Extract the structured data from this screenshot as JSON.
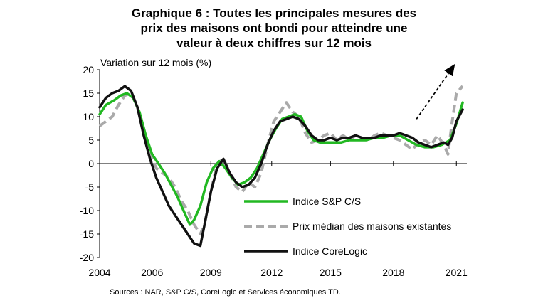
{
  "title_lines": [
    "Graphique 6 : Toutes les principales mesures des",
    "prix des maisons ont bondi pour atteindre une",
    "valeur à deux chiffres sur 12 mois"
  ],
  "source": "Sources : NAR, S&P C/S, CoreLogic et Services économiques TD.",
  "chart_data": {
    "type": "line",
    "title": "Graphique 6 : Toutes les principales mesures des prix des maisons ont bondi pour atteindre une valeur à deux chiffres sur 12 mois",
    "ylabel": "Variation sur 12 mois (%)",
    "xlabel": "",
    "xlim": [
      2004,
      2021.5
    ],
    "ylim": [
      -20,
      20
    ],
    "x_ticks": [
      "2004",
      "2006",
      "2009",
      "2012",
      "2015",
      "2018",
      "2021"
    ],
    "x_tick_values": [
      2004,
      2006.5,
      2009.3,
      2012.2,
      2015,
      2018,
      2021
    ],
    "y_ticks": [
      20,
      15,
      10,
      5,
      0,
      -5,
      -10,
      -15,
      -20
    ],
    "grid": false,
    "legend_position": "center-right",
    "series": [
      {
        "name": "Indice S&P C/S",
        "color": "#22b822",
        "style": "solid",
        "x": [
          2004,
          2004.3,
          2004.7,
          2005.0,
          2005.3,
          2005.6,
          2005.9,
          2006.2,
          2006.5,
          2006.8,
          2007.1,
          2007.4,
          2007.7,
          2008.0,
          2008.3,
          2008.5,
          2008.8,
          2009.1,
          2009.4,
          2009.7,
          2010.0,
          2010.3,
          2010.6,
          2010.9,
          2011.2,
          2011.5,
          2011.8,
          2012.1,
          2012.4,
          2012.7,
          2013.0,
          2013.3,
          2013.6,
          2013.9,
          2014.2,
          2014.5,
          2014.8,
          2015.1,
          2015.5,
          2015.9,
          2016.3,
          2016.7,
          2017.1,
          2017.5,
          2017.9,
          2018.3,
          2018.7,
          2019.1,
          2019.5,
          2019.9,
          2020.3,
          2020.7,
          2021.0,
          2021.3
        ],
        "values": [
          10.5,
          12.5,
          13.5,
          14.5,
          15.0,
          14.0,
          11.0,
          6.0,
          2.0,
          0.0,
          -2.0,
          -4.5,
          -7.0,
          -10.0,
          -13.0,
          -12.0,
          -9.0,
          -4.0,
          -1.0,
          0.5,
          -1.0,
          -3.0,
          -4.5,
          -4.0,
          -3.0,
          -1.0,
          2.0,
          5.0,
          7.5,
          9.5,
          10.0,
          10.5,
          10.0,
          7.0,
          5.0,
          4.5,
          4.5,
          4.5,
          4.5,
          5.0,
          5.0,
          5.0,
          5.5,
          5.5,
          6.0,
          6.0,
          5.0,
          4.0,
          3.5,
          3.5,
          4.0,
          5.0,
          8.5,
          13.0
        ]
      },
      {
        "name": "Prix médian des maisons existantes",
        "color": "#aaaaaa",
        "style": "dashed",
        "x": [
          2004,
          2004.3,
          2004.6,
          2004.9,
          2005.2,
          2005.5,
          2005.8,
          2006.1,
          2006.4,
          2006.7,
          2007.0,
          2007.3,
          2007.6,
          2007.9,
          2008.2,
          2008.5,
          2008.8,
          2009.0,
          2009.3,
          2009.6,
          2009.9,
          2010.2,
          2010.5,
          2010.8,
          2011.1,
          2011.4,
          2011.7,
          2012.0,
          2012.3,
          2012.6,
          2012.9,
          2013.2,
          2013.5,
          2013.8,
          2014.1,
          2014.4,
          2014.7,
          2015.0,
          2015.3,
          2015.6,
          2015.9,
          2016.2,
          2016.5,
          2016.8,
          2017.1,
          2017.4,
          2017.7,
          2018.0,
          2018.3,
          2018.6,
          2018.9,
          2019.2,
          2019.5,
          2019.8,
          2020.1,
          2020.4,
          2020.6,
          2020.8,
          2021.0,
          2021.3
        ],
        "values": [
          8.0,
          9.0,
          10.0,
          12.5,
          14.5,
          15.0,
          12.0,
          7.0,
          2.0,
          -1.0,
          -2.0,
          -3.0,
          -5.0,
          -8.0,
          -10.0,
          -13.0,
          -15.0,
          -13.0,
          -6.0,
          0.0,
          1.0,
          -2.0,
          -5.0,
          -6.0,
          -4.0,
          -5.0,
          -2.0,
          4.0,
          9.0,
          11.0,
          13.0,
          11.0,
          10.0,
          6.5,
          4.5,
          5.0,
          6.0,
          6.5,
          5.0,
          6.0,
          5.0,
          6.0,
          5.5,
          5.0,
          6.0,
          6.5,
          6.0,
          5.5,
          5.0,
          4.0,
          3.0,
          4.5,
          5.0,
          4.0,
          6.0,
          4.0,
          2.0,
          9.0,
          15.0,
          16.5
        ]
      },
      {
        "name": "Indice CoreLogic",
        "color": "#111111",
        "style": "solid",
        "x": [
          2004,
          2004.3,
          2004.6,
          2004.9,
          2005.2,
          2005.5,
          2005.8,
          2006.1,
          2006.4,
          2006.7,
          2007.0,
          2007.3,
          2007.6,
          2007.9,
          2008.2,
          2008.5,
          2008.8,
          2009.0,
          2009.3,
          2009.6,
          2009.9,
          2010.2,
          2010.5,
          2010.8,
          2011.1,
          2011.4,
          2011.7,
          2012.0,
          2012.3,
          2012.6,
          2012.9,
          2013.2,
          2013.5,
          2013.8,
          2014.1,
          2014.4,
          2014.7,
          2015.0,
          2015.3,
          2015.6,
          2015.9,
          2016.2,
          2016.5,
          2016.8,
          2017.1,
          2017.4,
          2017.7,
          2018.0,
          2018.3,
          2018.6,
          2018.9,
          2019.2,
          2019.5,
          2019.8,
          2020.1,
          2020.4,
          2020.6,
          2020.8,
          2021.0,
          2021.3
        ],
        "values": [
          12.0,
          14.0,
          15.0,
          15.5,
          16.5,
          15.5,
          12.0,
          6.0,
          1.0,
          -3.0,
          -6.0,
          -9.0,
          -11.0,
          -13.0,
          -15.0,
          -17.0,
          -17.5,
          -13.0,
          -6.0,
          -1.0,
          1.0,
          -2.0,
          -4.0,
          -5.0,
          -4.5,
          -3.0,
          0.0,
          4.0,
          7.0,
          9.0,
          9.5,
          10.0,
          9.5,
          8.0,
          6.0,
          5.0,
          5.0,
          5.5,
          5.0,
          5.5,
          5.5,
          6.0,
          5.5,
          5.5,
          5.5,
          6.0,
          6.0,
          6.0,
          6.5,
          6.0,
          5.5,
          4.5,
          4.0,
          3.5,
          4.0,
          4.5,
          4.0,
          5.5,
          9.0,
          11.5
        ]
      }
    ],
    "annotations": [
      {
        "type": "dashed-arrow",
        "from": [
          2019.1,
          9.5
        ],
        "to": [
          2020.9,
          21.0
        ],
        "color": "#000000"
      }
    ]
  }
}
